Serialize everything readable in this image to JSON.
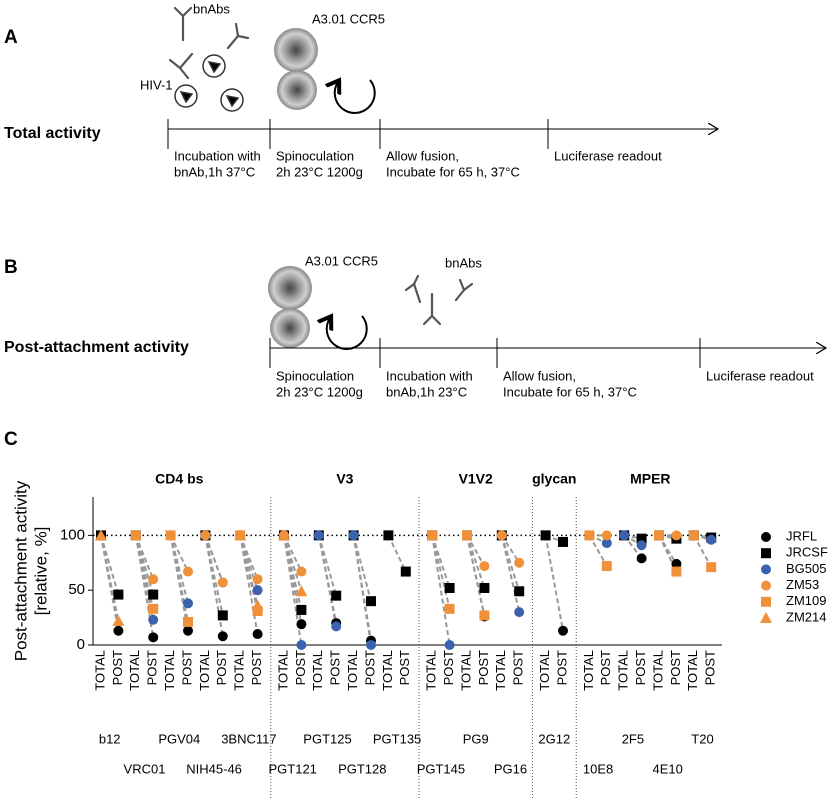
{
  "panel_a": {
    "label": "A",
    "title": "Total activity",
    "antibody_label": "bnAbs",
    "virus_label": "HIV-1",
    "cell_label": "A3.01 CCR5",
    "steps": [
      [
        "Incubation with",
        "bnAb,1h 37°C"
      ],
      [
        "Spinoculation",
        "2h 23°C 1200g"
      ],
      [
        "Allow fusion,",
        "Incubate for 65 h, 37°C"
      ],
      [
        "Luciferase readout"
      ]
    ]
  },
  "panel_b": {
    "label": "B",
    "title": "Post-attachment activity",
    "cell_label": "A3.01 CCR5",
    "antibody_label": "bnAbs",
    "steps": [
      [
        "Spinoculation",
        "2h 23°C 1200g"
      ],
      [
        "Incubation with",
        "bnAb,1h 23°C"
      ],
      [
        "Allow fusion,",
        "Incubate for 65 h, 37°C"
      ],
      [
        "Luciferase readout"
      ]
    ]
  },
  "chart_data": {
    "type": "scatter",
    "panel_label": "C",
    "ylabel": [
      "Post-attachment activity",
      "[relative, %]"
    ],
    "ylim": [
      0,
      135
    ],
    "yticks": [
      0,
      50,
      100
    ],
    "hline": 100,
    "groups": [
      {
        "name": "CD4 bs",
        "antibodies": [
          "b12",
          "VRC01",
          "PGV04",
          "NIH45-46",
          "3BNC117"
        ]
      },
      {
        "name": "V3",
        "antibodies": [
          "PGT121",
          "PGT125",
          "PGT128",
          "PGT135"
        ]
      },
      {
        "name": "V1V2",
        "antibodies": [
          "PGT145",
          "PG9",
          "PG16"
        ]
      },
      {
        "name": "glycan",
        "antibodies": [
          "2G12"
        ]
      },
      {
        "name": "MPER",
        "antibodies": [
          "10E8",
          "2F5",
          "4E10",
          "T20"
        ]
      }
    ],
    "categories": [
      "TOTAL",
      "POST",
      "TOTAL",
      "POST",
      "TOTAL",
      "POST",
      "TOTAL",
      "POST",
      "TOTAL",
      "POST",
      "TOTAL",
      "POST",
      "TOTAL",
      "POST",
      "TOTAL",
      "POST",
      "TOTAL",
      "POST",
      "TOTAL",
      "POST",
      "TOTAL",
      "POST",
      "TOTAL",
      "POST",
      "TOTAL",
      "POST",
      "TOTAL",
      "POST",
      "TOTAL",
      "POST",
      "TOTAL",
      "POST",
      "TOTAL",
      "POST"
    ],
    "series": [
      {
        "name": "JRFL",
        "color": "#000000",
        "marker": "circle",
        "values": [
          100,
          13,
          100,
          7,
          100,
          13,
          100,
          8,
          100,
          10,
          100,
          19,
          100,
          20,
          100,
          4,
          null,
          null,
          null,
          null,
          100,
          26,
          null,
          null,
          100,
          13,
          null,
          null,
          100,
          79,
          100,
          74,
          100,
          98
        ]
      },
      {
        "name": "JRCSF",
        "color": "#000000",
        "marker": "square",
        "values": [
          100,
          46,
          100,
          46,
          null,
          null,
          100,
          27,
          null,
          null,
          100,
          32,
          100,
          45,
          100,
          40,
          100,
          67,
          100,
          52,
          100,
          52,
          100,
          49,
          100,
          94,
          null,
          null,
          100,
          97,
          100,
          97,
          100,
          98
        ]
      },
      {
        "name": "BG505",
        "color": "#3a62ae",
        "marker": "circle",
        "values": [
          null,
          null,
          100,
          23,
          100,
          38,
          100,
          57,
          100,
          50,
          100,
          0,
          100,
          17,
          100,
          0,
          null,
          null,
          100,
          0,
          null,
          null,
          100,
          30,
          null,
          null,
          100,
          93,
          100,
          91,
          null,
          null,
          100,
          96
        ]
      },
      {
        "name": "ZM53",
        "color": "#f0913a",
        "marker": "circle",
        "values": [
          null,
          null,
          100,
          60,
          100,
          67,
          100,
          57,
          100,
          60,
          100,
          67,
          null,
          null,
          null,
          null,
          null,
          null,
          null,
          null,
          100,
          72,
          100,
          75,
          null,
          null,
          100,
          100,
          null,
          null,
          100,
          100,
          null,
          null
        ]
      },
      {
        "name": "ZM109",
        "color": "#f0913a",
        "marker": "square",
        "values": [
          null,
          null,
          100,
          33,
          100,
          21,
          null,
          null,
          100,
          31,
          null,
          null,
          null,
          null,
          null,
          null,
          null,
          null,
          100,
          33,
          100,
          27,
          null,
          null,
          null,
          null,
          100,
          72,
          null,
          null,
          100,
          67,
          100,
          71
        ]
      },
      {
        "name": "ZM214",
        "color": "#f0913a",
        "marker": "triangle",
        "values": [
          100,
          22,
          null,
          null,
          null,
          null,
          null,
          null,
          100,
          36,
          100,
          49,
          null,
          null,
          null,
          null,
          null,
          null,
          null,
          null,
          null,
          null,
          null,
          null,
          null,
          null,
          null,
          null,
          null,
          null,
          null,
          null,
          null,
          null
        ]
      }
    ]
  }
}
